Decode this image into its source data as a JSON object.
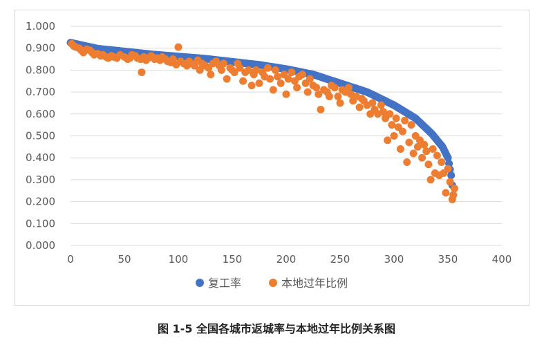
{
  "caption": "图 1-5 全国各城市返城率与本地过年比例关系图",
  "colors": {
    "series1": "#4472C4",
    "series2": "#ED7D31",
    "grid": "#d9d9d9",
    "text": "#595959"
  },
  "chart_data": {
    "type": "scatter",
    "title": "",
    "xlabel": "",
    "ylabel": "",
    "xlim": [
      0,
      400
    ],
    "ylim": [
      0,
      1.0
    ],
    "x_ticks": [
      "0",
      "50",
      "100",
      "150",
      "200",
      "250",
      "300",
      "350",
      "400"
    ],
    "y_ticks": [
      "0.000",
      "0.100",
      "0.200",
      "0.300",
      "0.400",
      "0.500",
      "0.600",
      "0.700",
      "0.800",
      "0.900",
      "1.000"
    ],
    "grid": "horizontal",
    "legend_position": "bottom",
    "series": [
      {
        "name": "复工率",
        "color": "#4472C4",
        "curve": [
          [
            0,
            0.925
          ],
          [
            25,
            0.898
          ],
          [
            50,
            0.885
          ],
          [
            75,
            0.872
          ],
          [
            100,
            0.862
          ],
          [
            125,
            0.852
          ],
          [
            150,
            0.838
          ],
          [
            175,
            0.824
          ],
          [
            200,
            0.805
          ],
          [
            225,
            0.78
          ],
          [
            250,
            0.74
          ],
          [
            275,
            0.7
          ],
          [
            300,
            0.64
          ],
          [
            320,
            0.58
          ],
          [
            335,
            0.51
          ],
          [
            345,
            0.45
          ],
          [
            350,
            0.4
          ],
          [
            353,
            0.32
          ],
          [
            355,
            0.23
          ]
        ]
      },
      {
        "name": "本地过年比例",
        "color": "#ED7D31",
        "points": [
          [
            1,
            0.92
          ],
          [
            3,
            0.91
          ],
          [
            5,
            0.905
          ],
          [
            8,
            0.9
          ],
          [
            10,
            0.89
          ],
          [
            12,
            0.88
          ],
          [
            15,
            0.895
          ],
          [
            18,
            0.89
          ],
          [
            20,
            0.88
          ],
          [
            22,
            0.87
          ],
          [
            25,
            0.875
          ],
          [
            28,
            0.865
          ],
          [
            30,
            0.87
          ],
          [
            33,
            0.86
          ],
          [
            35,
            0.855
          ],
          [
            38,
            0.865
          ],
          [
            40,
            0.86
          ],
          [
            43,
            0.855
          ],
          [
            46,
            0.87
          ],
          [
            50,
            0.86
          ],
          [
            53,
            0.85
          ],
          [
            55,
            0.855
          ],
          [
            57,
            0.87
          ],
          [
            60,
            0.865
          ],
          [
            62,
            0.855
          ],
          [
            65,
            0.85
          ],
          [
            66,
            0.79
          ],
          [
            68,
            0.86
          ],
          [
            70,
            0.845
          ],
          [
            72,
            0.855
          ],
          [
            75,
            0.865
          ],
          [
            78,
            0.85
          ],
          [
            80,
            0.855
          ],
          [
            83,
            0.845
          ],
          [
            85,
            0.86
          ],
          [
            88,
            0.85
          ],
          [
            90,
            0.84
          ],
          [
            93,
            0.835
          ],
          [
            95,
            0.85
          ],
          [
            98,
            0.825
          ],
          [
            100,
            0.905
          ],
          [
            102,
            0.84
          ],
          [
            105,
            0.83
          ],
          [
            108,
            0.82
          ],
          [
            110,
            0.84
          ],
          [
            112,
            0.83
          ],
          [
            115,
            0.82
          ],
          [
            118,
            0.845
          ],
          [
            120,
            0.8
          ],
          [
            122,
            0.83
          ],
          [
            125,
            0.82
          ],
          [
            128,
            0.81
          ],
          [
            130,
            0.78
          ],
          [
            132,
            0.83
          ],
          [
            135,
            0.84
          ],
          [
            138,
            0.82
          ],
          [
            140,
            0.8
          ],
          [
            142,
            0.83
          ],
          [
            145,
            0.76
          ],
          [
            148,
            0.81
          ],
          [
            150,
            0.8
          ],
          [
            152,
            0.79
          ],
          [
            155,
            0.83
          ],
          [
            157,
            0.81
          ],
          [
            160,
            0.75
          ],
          [
            162,
            0.79
          ],
          [
            165,
            0.8
          ],
          [
            168,
            0.73
          ],
          [
            170,
            0.78
          ],
          [
            172,
            0.8
          ],
          [
            175,
            0.74
          ],
          [
            178,
            0.79
          ],
          [
            180,
            0.77
          ],
          [
            183,
            0.81
          ],
          [
            185,
            0.76
          ],
          [
            188,
            0.71
          ],
          [
            190,
            0.8
          ],
          [
            192,
            0.77
          ],
          [
            195,
            0.74
          ],
          [
            198,
            0.78
          ],
          [
            200,
            0.69
          ],
          [
            202,
            0.76
          ],
          [
            205,
            0.79
          ],
          [
            208,
            0.75
          ],
          [
            210,
            0.72
          ],
          [
            212,
            0.77
          ],
          [
            215,
            0.78
          ],
          [
            218,
            0.74
          ],
          [
            220,
            0.7
          ],
          [
            222,
            0.76
          ],
          [
            225,
            0.73
          ],
          [
            228,
            0.72
          ],
          [
            230,
            0.69
          ],
          [
            232,
            0.62
          ],
          [
            235,
            0.71
          ],
          [
            238,
            0.7
          ],
          [
            240,
            0.68
          ],
          [
            242,
            0.73
          ],
          [
            245,
            0.72
          ],
          [
            248,
            0.68
          ],
          [
            250,
            0.65
          ],
          [
            252,
            0.71
          ],
          [
            255,
            0.7
          ],
          [
            258,
            0.72
          ],
          [
            260,
            0.69
          ],
          [
            262,
            0.66
          ],
          [
            265,
            0.68
          ],
          [
            268,
            0.63
          ],
          [
            270,
            0.67
          ],
          [
            272,
            0.66
          ],
          [
            275,
            0.64
          ],
          [
            278,
            0.6
          ],
          [
            280,
            0.65
          ],
          [
            282,
            0.62
          ],
          [
            285,
            0.6
          ],
          [
            288,
            0.64
          ],
          [
            290,
            0.61
          ],
          [
            292,
            0.58
          ],
          [
            294,
            0.48
          ],
          [
            296,
            0.6
          ],
          [
            298,
            0.55
          ],
          [
            300,
            0.5
          ],
          [
            302,
            0.58
          ],
          [
            304,
            0.54
          ],
          [
            306,
            0.44
          ],
          [
            308,
            0.52
          ],
          [
            310,
            0.57
          ],
          [
            312,
            0.38
          ],
          [
            314,
            0.47
          ],
          [
            316,
            0.55
          ],
          [
            318,
            0.42
          ],
          [
            320,
            0.5
          ],
          [
            322,
            0.45
          ],
          [
            324,
            0.48
          ],
          [
            326,
            0.4
          ],
          [
            328,
            0.46
          ],
          [
            330,
            0.43
          ],
          [
            332,
            0.37
          ],
          [
            334,
            0.3
          ],
          [
            336,
            0.44
          ],
          [
            338,
            0.33
          ],
          [
            340,
            0.41
          ],
          [
            342,
            0.32
          ],
          [
            344,
            0.38
          ],
          [
            346,
            0.33
          ],
          [
            348,
            0.24
          ],
          [
            350,
            0.35
          ],
          [
            352,
            0.29
          ],
          [
            354,
            0.21
          ],
          [
            355,
            0.23
          ],
          [
            356,
            0.26
          ]
        ]
      }
    ]
  }
}
